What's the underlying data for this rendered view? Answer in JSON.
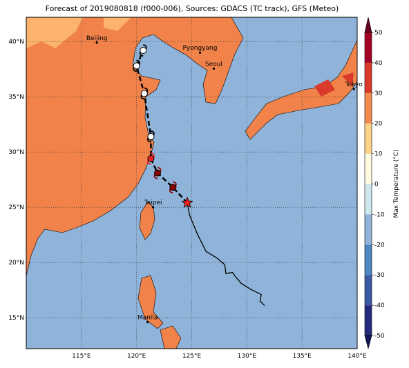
{
  "title": "Forecast of 2019080818 (f000-006), Sources: GDACS (TC track), GFS (Meteo)",
  "map": {
    "lon_range": [
      110,
      140
    ],
    "lat_range": [
      12.2,
      42.2
    ],
    "lon_ticks": [
      {
        "value": 115,
        "label": "115°E"
      },
      {
        "value": 120,
        "label": "120°E"
      },
      {
        "value": 125,
        "label": "125°E"
      },
      {
        "value": 130,
        "label": "130°E"
      },
      {
        "value": 135,
        "label": "135°E"
      },
      {
        "value": 140,
        "label": "140°E"
      }
    ],
    "lat_ticks": [
      {
        "value": 15,
        "label": "15°N"
      },
      {
        "value": 20,
        "label": "20°N"
      },
      {
        "value": 25,
        "label": "25°N"
      },
      {
        "value": 30,
        "label": "30°N"
      },
      {
        "value": 35,
        "label": "35°N"
      },
      {
        "value": 40,
        "label": "40°N"
      }
    ],
    "cities": [
      {
        "name": "Beijing",
        "lon": 116.4,
        "lat": 39.9
      },
      {
        "name": "Pyongyang",
        "lon": 125.75,
        "lat": 39.0
      },
      {
        "name": "Seoul",
        "lon": 127.0,
        "lat": 37.55
      },
      {
        "name": "Tokyo",
        "lon": 139.7,
        "lat": 35.7
      },
      {
        "name": "Taipei",
        "lon": 121.5,
        "lat": 25.0
      },
      {
        "name": "Manila",
        "lon": 121.0,
        "lat": 14.6
      }
    ],
    "past_track": {
      "lon": [
        124.6,
        124.8,
        125.5,
        126.3,
        127.3,
        128.0,
        128.1,
        128.7,
        128.9,
        129.5,
        130.3,
        131.3,
        131.2,
        131.6
      ],
      "lat": [
        25.4,
        24.3,
        22.6,
        21.0,
        20.4,
        19.8,
        19.0,
        19.1,
        18.8,
        18.1,
        17.6,
        17.1,
        16.5,
        16.1
      ]
    },
    "forecast_track": {
      "lon": [
        124.6,
        123.3,
        121.9,
        121.3,
        121.3,
        120.7,
        120.0,
        120.6
      ],
      "lat": [
        25.4,
        26.8,
        28.1,
        29.4,
        31.4,
        35.3,
        37.8,
        39.2
      ],
      "colors": [
        "#e8231d",
        "#8b0000",
        "#8b0000",
        "#e8231d",
        "#ffffff",
        "#ffffff",
        "#ffffff",
        "#ffffff"
      ]
    }
  },
  "colorbar": {
    "label": "Max Temperature (°C)",
    "ticks": [
      -50,
      -40,
      -30,
      -20,
      -10,
      0,
      10,
      20,
      30,
      40,
      50
    ],
    "colors": [
      "#262a7d",
      "#3a5aa6",
      "#4f86bf",
      "#8fb3d9",
      "#cfe8f0",
      "#fdfbe0",
      "#fdd38a",
      "#f28a4e",
      "#d93a2a",
      "#a50026"
    ],
    "extend_colors": [
      "#14145a",
      "#67001f"
    ]
  }
}
